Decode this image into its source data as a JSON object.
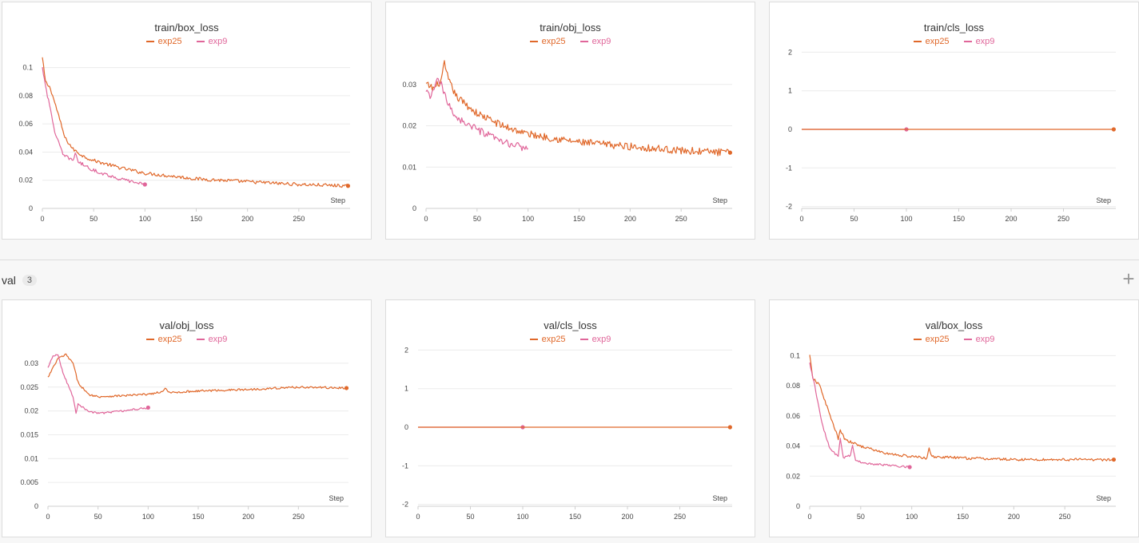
{
  "colors": {
    "exp25": "#e0682a",
    "exp9": "#e0669a"
  },
  "section": {
    "label": "val",
    "count": "3",
    "add_icon": "plus-icon"
  },
  "chart_data": [
    {
      "id": "train-box-loss",
      "type": "line",
      "title": "train/box_loss",
      "xlabel": "Step",
      "xlim": [
        0,
        300
      ],
      "ylim": [
        0,
        0.11
      ],
      "xticks": [
        0,
        50,
        100,
        150,
        200,
        250
      ],
      "xtick_labels": [
        "0",
        "50",
        "100",
        "150",
        "200",
        "250"
      ],
      "yticks": [
        0,
        0.02,
        0.04,
        0.06,
        0.08,
        0.1
      ],
      "ytick_labels": [
        "0",
        "0.02",
        "0.04",
        "0.06",
        "0.08",
        "0.1"
      ],
      "series": [
        {
          "name": "exp25",
          "color": "#e0682a",
          "noise": 0.0012,
          "end_marker": true,
          "points": [
            [
              0,
              0.107
            ],
            [
              3,
              0.09
            ],
            [
              8,
              0.085
            ],
            [
              15,
              0.068
            ],
            [
              22,
              0.05
            ],
            [
              30,
              0.042
            ],
            [
              40,
              0.037
            ],
            [
              50,
              0.034
            ],
            [
              75,
              0.029
            ],
            [
              100,
              0.025
            ],
            [
              150,
              0.021
            ],
            [
              200,
              0.019
            ],
            [
              250,
              0.017
            ],
            [
              298,
              0.016
            ]
          ]
        },
        {
          "name": "exp9",
          "color": "#e0669a",
          "noise": 0.0012,
          "end_marker": true,
          "points": [
            [
              0,
              0.1
            ],
            [
              5,
              0.08
            ],
            [
              12,
              0.055
            ],
            [
              20,
              0.038
            ],
            [
              30,
              0.034
            ],
            [
              32,
              0.04
            ],
            [
              35,
              0.033
            ],
            [
              50,
              0.027
            ],
            [
              75,
              0.021
            ],
            [
              100,
              0.017
            ]
          ]
        }
      ]
    },
    {
      "id": "train-obj-loss",
      "type": "line",
      "title": "train/obj_loss",
      "xlabel": "Step",
      "xlim": [
        0,
        300
      ],
      "ylim": [
        0,
        0.0375
      ],
      "xticks": [
        0,
        50,
        100,
        150,
        200,
        250
      ],
      "xtick_labels": [
        "0",
        "50",
        "100",
        "150",
        "200",
        "250"
      ],
      "yticks": [
        0,
        0.01,
        0.02,
        0.03
      ],
      "ytick_labels": [
        "0",
        "0.01",
        "0.02",
        "0.03"
      ],
      "series": [
        {
          "name": "exp25",
          "color": "#e0682a",
          "noise": 0.0009,
          "end_marker": true,
          "points": [
            [
              0,
              0.03
            ],
            [
              8,
              0.029
            ],
            [
              15,
              0.031
            ],
            [
              18,
              0.035
            ],
            [
              22,
              0.031
            ],
            [
              30,
              0.027
            ],
            [
              50,
              0.023
            ],
            [
              75,
              0.02
            ],
            [
              100,
              0.018
            ],
            [
              150,
              0.016
            ],
            [
              200,
              0.015
            ],
            [
              250,
              0.014
            ],
            [
              298,
              0.0135
            ]
          ]
        },
        {
          "name": "exp9",
          "color": "#e0669a",
          "noise": 0.0009,
          "end_marker": false,
          "points": [
            [
              0,
              0.028
            ],
            [
              5,
              0.027
            ],
            [
              10,
              0.031
            ],
            [
              15,
              0.03
            ],
            [
              20,
              0.026
            ],
            [
              30,
              0.022
            ],
            [
              50,
              0.019
            ],
            [
              75,
              0.016
            ],
            [
              100,
              0.0145
            ]
          ]
        }
      ]
    },
    {
      "id": "train-cls-loss",
      "type": "line",
      "title": "train/cls_loss",
      "xlabel": "Step",
      "xlim": [
        0,
        300
      ],
      "ylim": [
        -2.05,
        2.05
      ],
      "xticks": [
        0,
        50,
        100,
        150,
        200,
        250
      ],
      "xtick_labels": [
        "0",
        "50",
        "100",
        "150",
        "200",
        "250"
      ],
      "yticks": [
        -2,
        -1,
        0,
        1,
        2
      ],
      "ytick_labels": [
        "-2",
        "-1",
        "0",
        "1",
        "2"
      ],
      "series": [
        {
          "name": "exp9",
          "color": "#e0669a",
          "noise": 0,
          "end_marker": true,
          "points": [
            [
              0,
              0
            ],
            [
              100,
              0
            ]
          ]
        },
        {
          "name": "exp25",
          "color": "#e0682a",
          "noise": 0,
          "end_marker": true,
          "points": [
            [
              0,
              0
            ],
            [
              298,
              0
            ]
          ]
        }
      ]
    },
    {
      "id": "val-obj-loss",
      "type": "line",
      "title": "val/obj_loss",
      "xlabel": "Step",
      "xlim": [
        0,
        300
      ],
      "ylim": [
        0,
        0.0325
      ],
      "xticks": [
        0,
        50,
        100,
        150,
        200,
        250
      ],
      "xtick_labels": [
        "0",
        "50",
        "100",
        "150",
        "200",
        "250"
      ],
      "yticks": [
        0,
        0.005,
        0.01,
        0.015,
        0.02,
        0.025,
        0.03
      ],
      "ytick_labels": [
        "0",
        "0.005",
        "0.01",
        "0.015",
        "0.02",
        "0.025",
        "0.03"
      ],
      "series": [
        {
          "name": "exp25",
          "color": "#e0682a",
          "noise": 0.00022,
          "end_marker": true,
          "points": [
            [
              0,
              0.027
            ],
            [
              5,
              0.029
            ],
            [
              10,
              0.031
            ],
            [
              18,
              0.0318
            ],
            [
              25,
              0.03
            ],
            [
              30,
              0.026
            ],
            [
              40,
              0.0235
            ],
            [
              50,
              0.023
            ],
            [
              75,
              0.0232
            ],
            [
              100,
              0.0235
            ],
            [
              115,
              0.024
            ],
            [
              117,
              0.025
            ],
            [
              120,
              0.0238
            ],
            [
              150,
              0.0242
            ],
            [
              200,
              0.0245
            ],
            [
              250,
              0.025
            ],
            [
              298,
              0.0248
            ]
          ]
        },
        {
          "name": "exp9",
          "color": "#e0669a",
          "noise": 0.0002,
          "end_marker": true,
          "points": [
            [
              0,
              0.029
            ],
            [
              5,
              0.0315
            ],
            [
              10,
              0.0318
            ],
            [
              15,
              0.028
            ],
            [
              25,
              0.023
            ],
            [
              28,
              0.0195
            ],
            [
              30,
              0.0215
            ],
            [
              40,
              0.02
            ],
            [
              50,
              0.0195
            ],
            [
              75,
              0.02
            ],
            [
              100,
              0.0207
            ]
          ]
        }
      ]
    },
    {
      "id": "val-cls-loss",
      "type": "line",
      "title": "val/cls_loss",
      "xlabel": "Step",
      "xlim": [
        0,
        300
      ],
      "ylim": [
        -2.05,
        2.05
      ],
      "xticks": [
        0,
        50,
        100,
        150,
        200,
        250
      ],
      "xtick_labels": [
        "0",
        "50",
        "100",
        "150",
        "200",
        "250"
      ],
      "yticks": [
        -2,
        -1,
        0,
        1,
        2
      ],
      "ytick_labels": [
        "-2",
        "-1",
        "0",
        "1",
        "2"
      ],
      "series": [
        {
          "name": "exp9",
          "color": "#e0669a",
          "noise": 0,
          "end_marker": true,
          "points": [
            [
              0,
              0
            ],
            [
              100,
              0
            ]
          ]
        },
        {
          "name": "exp25",
          "color": "#e0682a",
          "noise": 0,
          "end_marker": true,
          "points": [
            [
              0,
              0
            ],
            [
              298,
              0
            ]
          ]
        }
      ]
    },
    {
      "id": "val-box-loss",
      "type": "line",
      "title": "val/box_loss",
      "xlabel": "Step",
      "xlim": [
        0,
        300
      ],
      "ylim": [
        0,
        0.105
      ],
      "xticks": [
        0,
        50,
        100,
        150,
        200,
        250
      ],
      "xtick_labels": [
        "0",
        "50",
        "100",
        "150",
        "200",
        "250"
      ],
      "yticks": [
        0,
        0.02,
        0.04,
        0.06,
        0.08,
        0.1
      ],
      "ytick_labels": [
        "0",
        "0.02",
        "0.04",
        "0.06",
        "0.08",
        "0.1"
      ],
      "series": [
        {
          "name": "exp25",
          "color": "#e0682a",
          "noise": 0.0009,
          "end_marker": true,
          "points": [
            [
              0,
              0.1
            ],
            [
              3,
              0.085
            ],
            [
              10,
              0.08
            ],
            [
              20,
              0.06
            ],
            [
              28,
              0.045
            ],
            [
              30,
              0.05
            ],
            [
              35,
              0.044
            ],
            [
              50,
              0.04
            ],
            [
              75,
              0.035
            ],
            [
              100,
              0.033
            ],
            [
              115,
              0.032
            ],
            [
              117,
              0.038
            ],
            [
              120,
              0.033
            ],
            [
              150,
              0.032
            ],
            [
              200,
              0.031
            ],
            [
              250,
              0.031
            ],
            [
              298,
              0.031
            ]
          ]
        },
        {
          "name": "exp9",
          "color": "#e0669a",
          "noise": 0.0007,
          "end_marker": true,
          "points": [
            [
              0,
              0.095
            ],
            [
              5,
              0.08
            ],
            [
              12,
              0.055
            ],
            [
              20,
              0.038
            ],
            [
              28,
              0.033
            ],
            [
              30,
              0.045
            ],
            [
              33,
              0.032
            ],
            [
              40,
              0.034
            ],
            [
              42,
              0.04
            ],
            [
              45,
              0.03
            ],
            [
              60,
              0.028
            ],
            [
              80,
              0.027
            ],
            [
              98,
              0.026
            ]
          ]
        }
      ]
    }
  ]
}
